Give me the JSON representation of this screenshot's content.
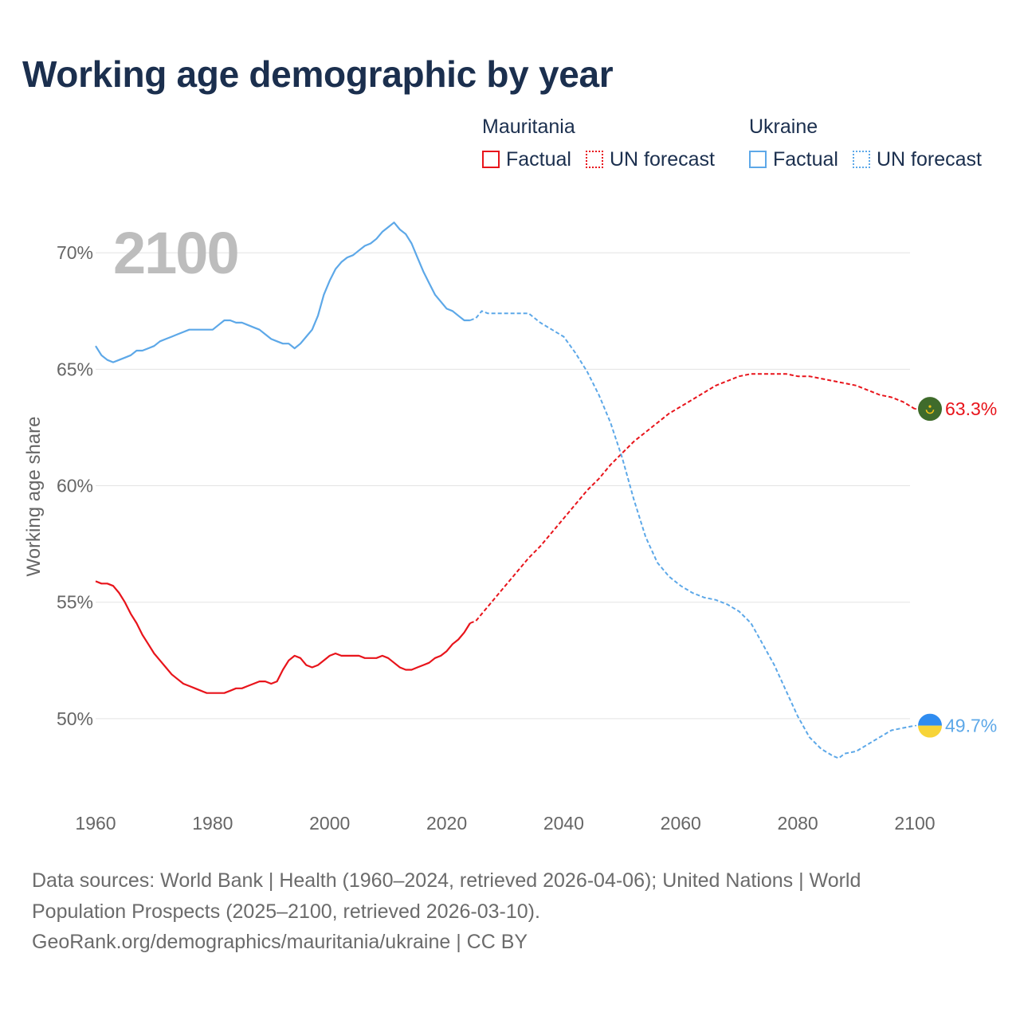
{
  "title": "Working age demographic by year",
  "legend": {
    "groups": [
      {
        "name": "Mauritania",
        "color": "#e8141b",
        "factual_label": "Factual",
        "forecast_label": "UN forecast"
      },
      {
        "name": "Ukraine",
        "color": "#5da8e8",
        "factual_label": "Factual",
        "forecast_label": "UN forecast"
      }
    ]
  },
  "year_overlay": "2100",
  "chart_data": {
    "type": "line",
    "title": "Working age demographic by year",
    "xlabel": "",
    "ylabel": "Working age share",
    "xlim": [
      1960,
      2103
    ],
    "ylim": [
      46.3,
      72.3
    ],
    "x_ticks": [
      1960,
      1980,
      2000,
      2020,
      2040,
      2060,
      2080,
      2100
    ],
    "x_tick_labels": [
      "1960",
      "1980",
      "2000",
      "2020",
      "2040",
      "2060",
      "2080",
      "2100"
    ],
    "y_ticks": [
      50,
      55,
      60,
      65,
      70
    ],
    "y_tick_labels": [
      "50%",
      "55%",
      "60%",
      "65%",
      "70%"
    ],
    "grid": true,
    "series": [
      {
        "name": "Mauritania",
        "color": "#e8141b",
        "end_label": "63.3%",
        "factual": {
          "x": [
            1960,
            1961,
            1962,
            1963,
            1964,
            1965,
            1966,
            1967,
            1968,
            1969,
            1970,
            1971,
            1972,
            1973,
            1974,
            1975,
            1976,
            1977,
            1978,
            1979,
            1980,
            1981,
            1982,
            1983,
            1984,
            1985,
            1986,
            1987,
            1988,
            1989,
            1990,
            1991,
            1992,
            1993,
            1994,
            1995,
            1996,
            1997,
            1998,
            1999,
            2000,
            2001,
            2002,
            2003,
            2004,
            2005,
            2006,
            2007,
            2008,
            2009,
            2010,
            2011,
            2012,
            2013,
            2014,
            2015,
            2016,
            2017,
            2018,
            2019,
            2020,
            2021,
            2022,
            2023,
            2024
          ],
          "y": [
            55.9,
            55.8,
            55.8,
            55.7,
            55.4,
            55.0,
            54.5,
            54.1,
            53.6,
            53.2,
            52.8,
            52.5,
            52.2,
            51.9,
            51.7,
            51.5,
            51.4,
            51.3,
            51.2,
            51.1,
            51.1,
            51.1,
            51.1,
            51.2,
            51.3,
            51.3,
            51.4,
            51.5,
            51.6,
            51.6,
            51.5,
            51.6,
            52.1,
            52.5,
            52.7,
            52.6,
            52.3,
            52.2,
            52.3,
            52.5,
            52.7,
            52.8,
            52.7,
            52.7,
            52.7,
            52.7,
            52.6,
            52.6,
            52.6,
            52.7,
            52.6,
            52.4,
            52.2,
            52.1,
            52.1,
            52.2,
            52.3,
            52.4,
            52.6,
            52.7,
            52.9,
            53.2,
            53.4,
            53.7,
            54.1
          ]
        },
        "forecast": {
          "x": [
            2024,
            2025,
            2026,
            2027,
            2028,
            2029,
            2030,
            2032,
            2034,
            2036,
            2038,
            2040,
            2042,
            2044,
            2046,
            2048,
            2050,
            2052,
            2054,
            2056,
            2058,
            2060,
            2062,
            2064,
            2066,
            2068,
            2070,
            2072,
            2074,
            2076,
            2078,
            2080,
            2082,
            2084,
            2086,
            2088,
            2090,
            2092,
            2094,
            2096,
            2098,
            2100
          ],
          "y": [
            54.1,
            54.2,
            54.5,
            54.8,
            55.1,
            55.4,
            55.7,
            56.3,
            56.9,
            57.4,
            58.0,
            58.6,
            59.2,
            59.8,
            60.3,
            60.9,
            61.4,
            61.9,
            62.3,
            62.7,
            63.1,
            63.4,
            63.7,
            64.0,
            64.3,
            64.5,
            64.7,
            64.8,
            64.8,
            64.8,
            64.8,
            64.7,
            64.7,
            64.6,
            64.5,
            64.4,
            64.3,
            64.1,
            63.9,
            63.8,
            63.6,
            63.3
          ]
        }
      },
      {
        "name": "Ukraine",
        "color": "#5da8e8",
        "end_label": "49.7%",
        "factual": {
          "x": [
            1960,
            1961,
            1962,
            1963,
            1964,
            1965,
            1966,
            1967,
            1968,
            1969,
            1970,
            1971,
            1972,
            1973,
            1974,
            1975,
            1976,
            1977,
            1978,
            1979,
            1980,
            1981,
            1982,
            1983,
            1984,
            1985,
            1986,
            1987,
            1988,
            1989,
            1990,
            1991,
            1992,
            1993,
            1994,
            1995,
            1996,
            1997,
            1998,
            1999,
            2000,
            2001,
            2002,
            2003,
            2004,
            2005,
            2006,
            2007,
            2008,
            2009,
            2010,
            2011,
            2012,
            2013,
            2014,
            2015,
            2016,
            2017,
            2018,
            2019,
            2020,
            2021,
            2022,
            2023,
            2024
          ],
          "y": [
            66.0,
            65.6,
            65.4,
            65.3,
            65.4,
            65.5,
            65.6,
            65.8,
            65.8,
            65.9,
            66.0,
            66.2,
            66.3,
            66.4,
            66.5,
            66.6,
            66.7,
            66.7,
            66.7,
            66.7,
            66.7,
            66.9,
            67.1,
            67.1,
            67.0,
            67.0,
            66.9,
            66.8,
            66.7,
            66.5,
            66.3,
            66.2,
            66.1,
            66.1,
            65.9,
            66.1,
            66.4,
            66.7,
            67.3,
            68.2,
            68.8,
            69.3,
            69.6,
            69.8,
            69.9,
            70.1,
            70.3,
            70.4,
            70.6,
            70.9,
            71.1,
            71.3,
            71.0,
            70.8,
            70.4,
            69.8,
            69.2,
            68.7,
            68.2,
            67.9,
            67.6,
            67.5,
            67.3,
            67.1,
            67.1
          ]
        },
        "forecast": {
          "x": [
            2024,
            2025,
            2026,
            2027,
            2028,
            2030,
            2032,
            2034,
            2036,
            2038,
            2040,
            2042,
            2044,
            2046,
            2048,
            2050,
            2052,
            2054,
            2056,
            2058,
            2060,
            2062,
            2064,
            2066,
            2068,
            2070,
            2072,
            2074,
            2076,
            2078,
            2080,
            2082,
            2084,
            2086,
            2087,
            2088,
            2090,
            2092,
            2094,
            2096,
            2098,
            2100
          ],
          "y": [
            67.1,
            67.2,
            67.5,
            67.4,
            67.4,
            67.4,
            67.4,
            67.4,
            67.0,
            66.7,
            66.4,
            65.7,
            64.9,
            63.9,
            62.7,
            61.2,
            59.4,
            57.8,
            56.7,
            56.1,
            55.7,
            55.4,
            55.2,
            55.1,
            54.9,
            54.6,
            54.1,
            53.2,
            52.3,
            51.2,
            50.1,
            49.2,
            48.7,
            48.4,
            48.3,
            48.5,
            48.6,
            48.9,
            49.2,
            49.5,
            49.6,
            49.7
          ]
        }
      }
    ]
  },
  "footer": {
    "line1": "Data sources: World Bank | Health (1960–2024, retrieved 2026-04-06); United Nations | World",
    "line2": "Population Prospects (2025–2100, retrieved 2026-03-10).",
    "line3": "GeoRank.org/demographics/mauritania/ukraine | CC BY"
  }
}
